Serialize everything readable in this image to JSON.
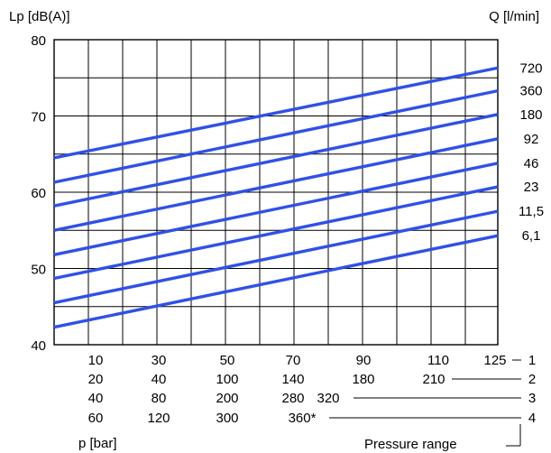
{
  "chart_data": {
    "type": "line",
    "ylabel": "Lp [dB(A)]",
    "y2label": "Q [l/min]",
    "xlabel": "p [bar]",
    "ylim": [
      40,
      80
    ],
    "y_ticks": [
      "80",
      "70",
      "60",
      "50",
      "40"
    ],
    "y_tick_values": [
      80,
      70,
      60,
      50,
      40
    ],
    "grid": true,
    "line_color": "#3050e6",
    "series": [
      {
        "name": "720",
        "values": [
          64.5,
          76.3
        ]
      },
      {
        "name": "360",
        "values": [
          61.3,
          73.3
        ]
      },
      {
        "name": "180",
        "values": [
          58.2,
          70.2
        ]
      },
      {
        "name": "92",
        "values": [
          55.0,
          67.0
        ]
      },
      {
        "name": "46",
        "values": [
          51.8,
          63.8
        ]
      },
      {
        "name": "23",
        "values": [
          48.7,
          60.7
        ]
      },
      {
        "name": "11,5",
        "values": [
          45.5,
          57.5
        ]
      },
      {
        "name": "6,1",
        "values": [
          42.3,
          54.3
        ]
      }
    ],
    "pressure_rows": [
      {
        "range": "1",
        "labels": [
          "10",
          "30",
          "50",
          "70",
          "90",
          "110",
          "125"
        ]
      },
      {
        "range": "2",
        "labels": [
          "20",
          "40",
          "100",
          "140",
          "180",
          "210"
        ]
      },
      {
        "range": "3",
        "labels": [
          "40",
          "80",
          "200",
          "280",
          "320"
        ]
      },
      {
        "range": "4",
        "labels": [
          "60",
          "120",
          "300",
          "360*"
        ]
      }
    ],
    "pressure_range_label": "Pressure range"
  }
}
